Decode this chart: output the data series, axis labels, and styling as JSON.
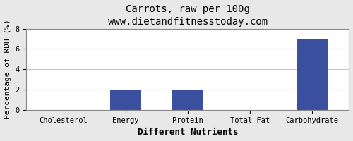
{
  "title": "Carrots, raw per 100g",
  "subtitle": "www.dietandfitnesstoday.com",
  "xlabel": "Different Nutrients",
  "ylabel": "Percentage of RDH (%)",
  "categories": [
    "Cholesterol",
    "Energy",
    "Protein",
    "Total Fat",
    "Carbohydrate"
  ],
  "values": [
    0,
    2,
    2,
    0,
    7
  ],
  "bar_color": "#3a4f9e",
  "ylim": [
    0,
    8
  ],
  "yticks": [
    0,
    2,
    4,
    6,
    8
  ],
  "background_color": "#e8e8e8",
  "plot_bg_color": "#ffffff",
  "title_fontsize": 10,
  "xlabel_fontsize": 9,
  "ylabel_fontsize": 8,
  "tick_fontsize": 7.5,
  "grid_color": "#c8c8c8",
  "spine_color": "#888888",
  "font_family": "monospace"
}
